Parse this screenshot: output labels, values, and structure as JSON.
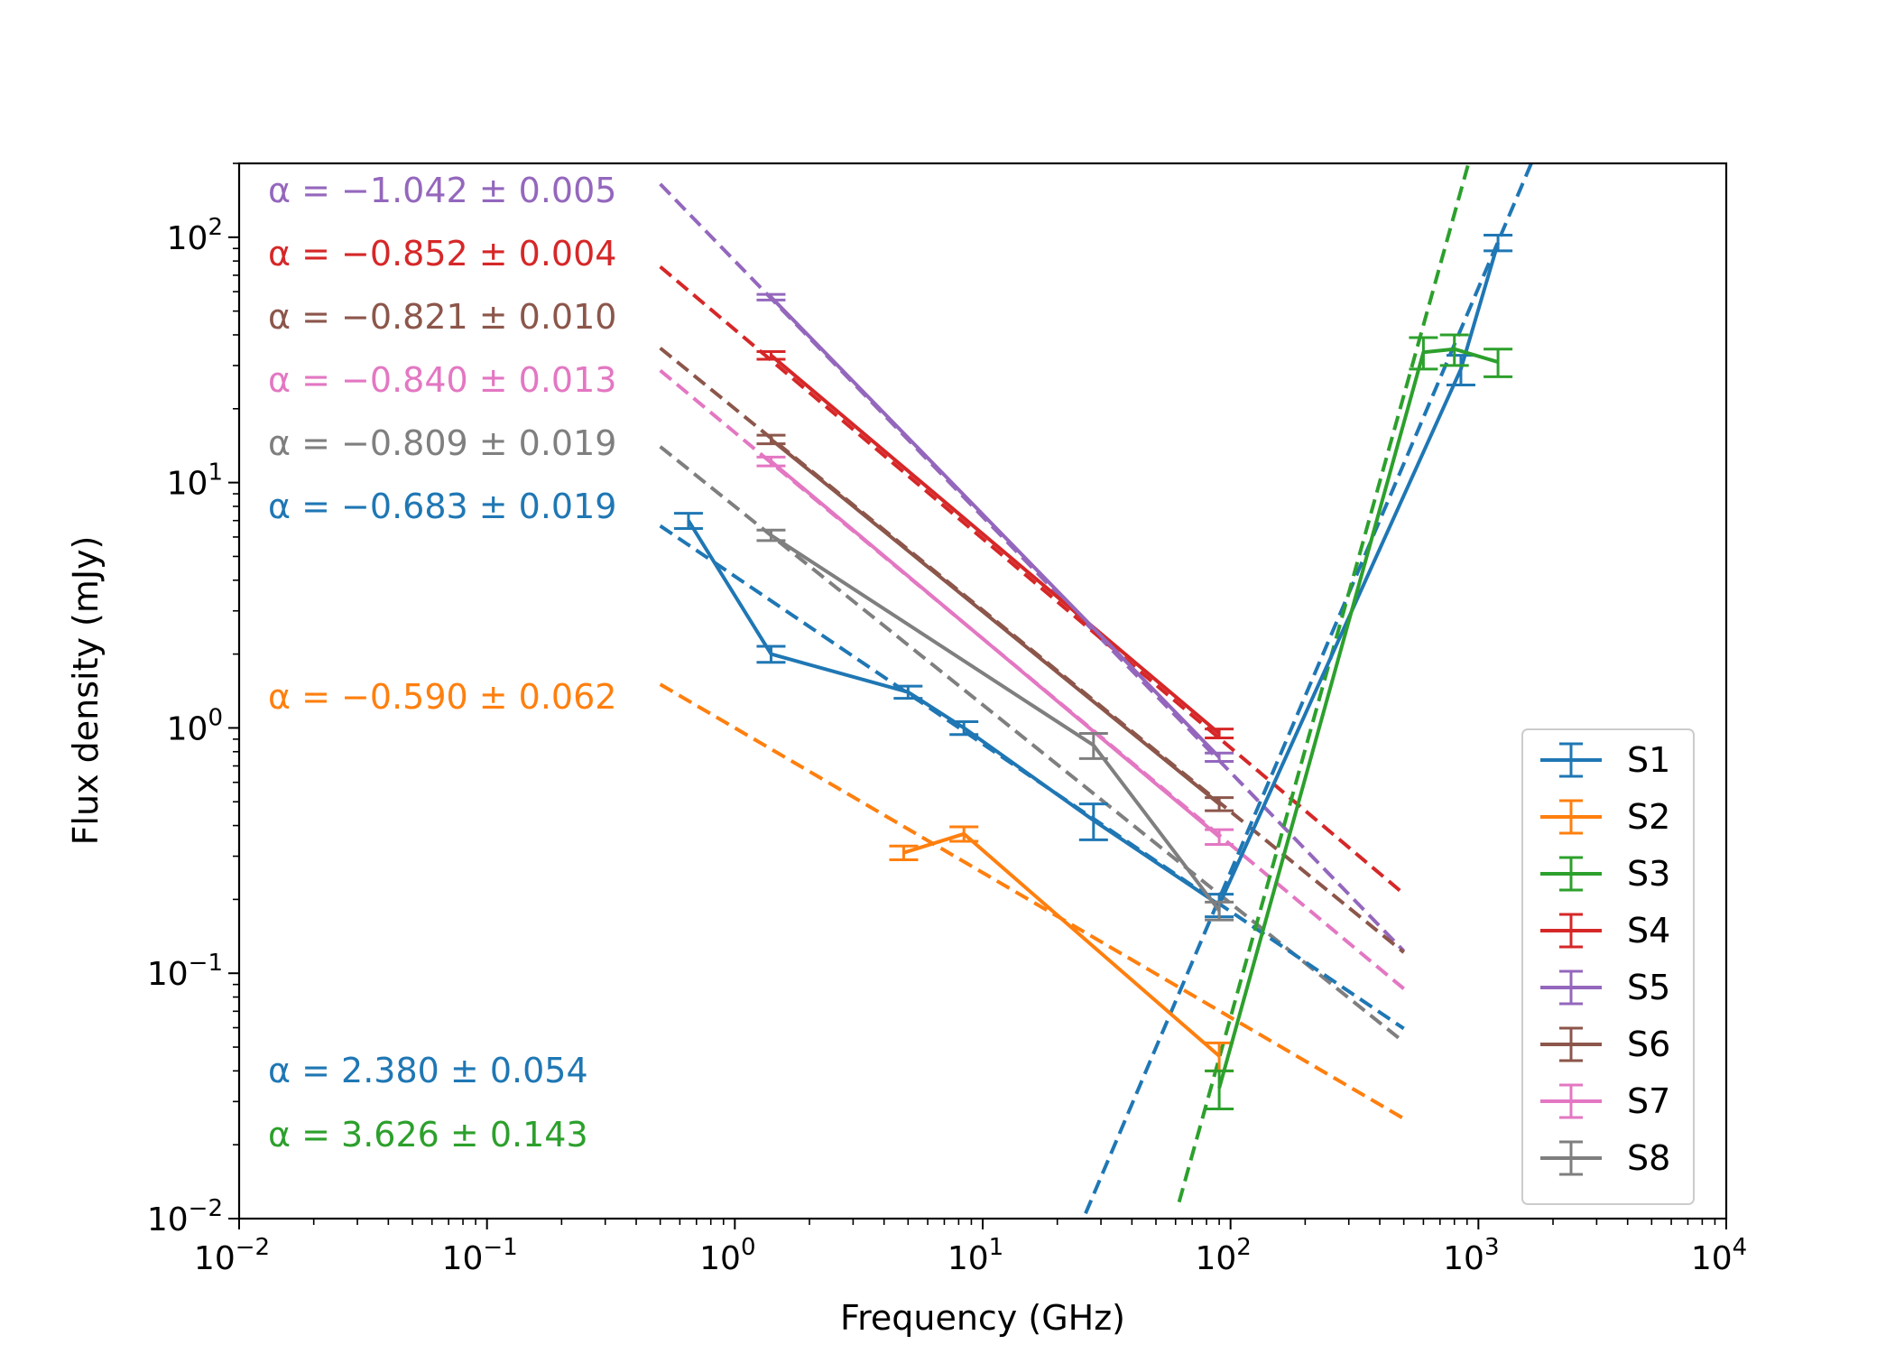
{
  "chart_data": {
    "type": "line",
    "title": "",
    "xlabel": "Frequency (GHz)",
    "ylabel": "Flux density (mJy)",
    "xscale": "log",
    "yscale": "log",
    "xlim": [
      0.01,
      10000
    ],
    "ylim": [
      0.01,
      200
    ],
    "x_ticks": [
      {
        "value": 0.01,
        "base": "10",
        "exp": "−2"
      },
      {
        "value": 0.1,
        "base": "10",
        "exp": "−1"
      },
      {
        "value": 1,
        "base": "10",
        "exp": "0"
      },
      {
        "value": 10,
        "base": "10",
        "exp": "1"
      },
      {
        "value": 100,
        "base": "10",
        "exp": "2"
      },
      {
        "value": 1000,
        "base": "10",
        "exp": "3"
      },
      {
        "value": 10000,
        "base": "10",
        "exp": "4"
      }
    ],
    "y_ticks": [
      {
        "value": 0.01,
        "base": "10",
        "exp": "−2"
      },
      {
        "value": 0.1,
        "base": "10",
        "exp": "−1"
      },
      {
        "value": 1,
        "base": "10",
        "exp": "0"
      },
      {
        "value": 10,
        "base": "10",
        "exp": "1"
      },
      {
        "value": 100,
        "base": "10",
        "exp": "2"
      }
    ],
    "grid": false,
    "legend_position": "lower-right",
    "series": [
      {
        "name": "S1",
        "color": "#1f77b4",
        "x": [
          0.65,
          1.4,
          5,
          8.4,
          28,
          90,
          850,
          1200
        ],
        "y": [
          7.0,
          2.0,
          1.4,
          1.0,
          0.42,
          0.19,
          29,
          95
        ],
        "err": [
          0.5,
          0.15,
          0.08,
          0.06,
          0.07,
          0.02,
          4,
          7
        ]
      },
      {
        "name": "S2",
        "color": "#ff7f0e",
        "x": [
          4.8,
          8.4,
          90
        ],
        "y": [
          0.31,
          0.37,
          0.046
        ],
        "err": [
          0.02,
          0.025,
          0.006
        ]
      },
      {
        "name": "S3",
        "color": "#2ca02c",
        "x": [
          90,
          600,
          800,
          1200
        ],
        "y": [
          0.034,
          34,
          35,
          31
        ],
        "err": [
          0.006,
          5,
          5,
          4
        ]
      },
      {
        "name": "S4",
        "color": "#d62728",
        "x": [
          1.4,
          90
        ],
        "y": [
          33,
          0.95
        ],
        "err": [
          1.2,
          0.04
        ]
      },
      {
        "name": "S5",
        "color": "#9467bd",
        "x": [
          1.4,
          90
        ],
        "y": [
          57,
          0.76
        ],
        "err": [
          1.5,
          0.03
        ]
      },
      {
        "name": "S6",
        "color": "#8c564b",
        "x": [
          1.4,
          90
        ],
        "y": [
          15,
          0.49
        ],
        "err": [
          0.6,
          0.03
        ]
      },
      {
        "name": "S7",
        "color": "#e377c2",
        "x": [
          1.4,
          90
        ],
        "y": [
          12.2,
          0.36
        ],
        "err": [
          0.5,
          0.025
        ]
      },
      {
        "name": "S8",
        "color": "#7f7f7f",
        "x": [
          1.4,
          28,
          90
        ],
        "y": [
          6.1,
          0.85,
          0.18
        ],
        "err": [
          0.3,
          0.1,
          0.015
        ]
      }
    ],
    "fits": [
      {
        "series": "S5",
        "color": "#9467bd",
        "alpha": -1.042,
        "x_range": [
          0.5,
          500
        ],
        "y_at_1": 80
      },
      {
        "series": "S4",
        "color": "#d62728",
        "alpha": -0.852,
        "x_range": [
          0.5,
          500
        ],
        "y_at_1": 42
      },
      {
        "series": "S6",
        "color": "#8c564b",
        "alpha": -0.821,
        "x_range": [
          0.5,
          500
        ],
        "y_at_1": 20
      },
      {
        "series": "S7",
        "color": "#e377c2",
        "alpha": -0.84,
        "x_range": [
          0.5,
          500
        ],
        "y_at_1": 16
      },
      {
        "series": "S8",
        "color": "#7f7f7f",
        "alpha": -0.809,
        "x_range": [
          0.5,
          500
        ],
        "y_at_1": 8
      },
      {
        "series": "S1",
        "color": "#1f77b4",
        "alpha": -0.683,
        "x_range": [
          0.5,
          500
        ],
        "y_at_1": 4.15
      },
      {
        "series": "S2",
        "color": "#ff7f0e",
        "alpha": -0.59,
        "x_range": [
          0.5,
          500
        ],
        "y_at_1": 1.0
      },
      {
        "series": "S1",
        "color": "#1f77b4",
        "alpha": 2.38,
        "x_range": [
          26,
          2000
        ],
        "y_at_1": 4.5e-06
      },
      {
        "series": "S3",
        "color": "#2ca02c",
        "alpha": 3.626,
        "x_range": [
          62,
          1500
        ],
        "y_at_1": 3.7e-09
      }
    ],
    "annotations": [
      {
        "text": "α = −1.042 ± 0.005",
        "color": "#9467bd",
        "position": "upper-left"
      },
      {
        "text": "α = −0.852 ± 0.004",
        "color": "#d62728",
        "position": "upper-left"
      },
      {
        "text": "α = −0.821 ± 0.010",
        "color": "#8c564b",
        "position": "upper-left"
      },
      {
        "text": "α = −0.840 ± 0.013",
        "color": "#e377c2",
        "position": "upper-left"
      },
      {
        "text": "α = −0.809 ± 0.019",
        "color": "#7f7f7f",
        "position": "upper-left"
      },
      {
        "text": "α = −0.683 ± 0.019",
        "color": "#1f77b4",
        "position": "upper-left"
      },
      {
        "text": "α = −0.590 ± 0.062",
        "color": "#ff7f0e",
        "position": "middle-left"
      },
      {
        "text": "α = 2.380 ± 0.054",
        "color": "#1f77b4",
        "position": "lower-left"
      },
      {
        "text": "α = 3.626 ± 0.143",
        "color": "#2ca02c",
        "position": "lower-left"
      }
    ]
  }
}
